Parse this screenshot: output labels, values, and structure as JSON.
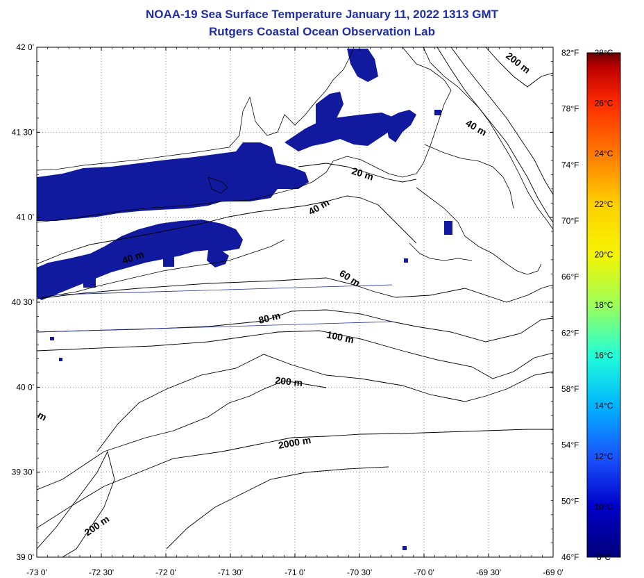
{
  "header": {
    "title": "NOAA-19 Sea Surface Temperature January 11, 2022 1313 GMT",
    "subtitle": "Rutgers Coastal Ocean Observation Lab"
  },
  "map": {
    "lat_labels": [
      "42 0'",
      "41 30'",
      "41 0'",
      "40 30'",
      "40 0'",
      "39 30'",
      "39 0'"
    ],
    "lon_labels": [
      "-73 0'",
      "-72 30'",
      "-72 0'",
      "-71 30'",
      "-71 0'",
      "-70 30'",
      "-70 0'",
      "-69 30'",
      "-69 0'"
    ],
    "depth_labels": [
      "200 m",
      "40 m",
      "20 m",
      "40 m",
      "40 m",
      "60 m",
      "80 m",
      "100 m",
      "200 m",
      "2000 m",
      "200 m",
      "m"
    ],
    "sst_color": "#111a9e"
  },
  "fahrenheit_scale": [
    "82°F",
    "78°F",
    "74°F",
    "70°F",
    "66°F",
    "62°F",
    "58°F",
    "54°F",
    "50°F",
    "46°F"
  ],
  "colorbar": {
    "labels": [
      "28°C",
      "26°C",
      "24°C",
      "22°C",
      "20°C",
      "18°C",
      "16°C",
      "14°C",
      "12°C",
      "10°C",
      "8°C"
    ],
    "colors": [
      "#6b0000",
      "#c00000",
      "#ff2a00",
      "#ff7a00",
      "#ffd000",
      "#f5f500",
      "#9cff5a",
      "#20ffd8",
      "#00b4ff",
      "#1a55ff",
      "#0000c8",
      "#00007a"
    ]
  }
}
